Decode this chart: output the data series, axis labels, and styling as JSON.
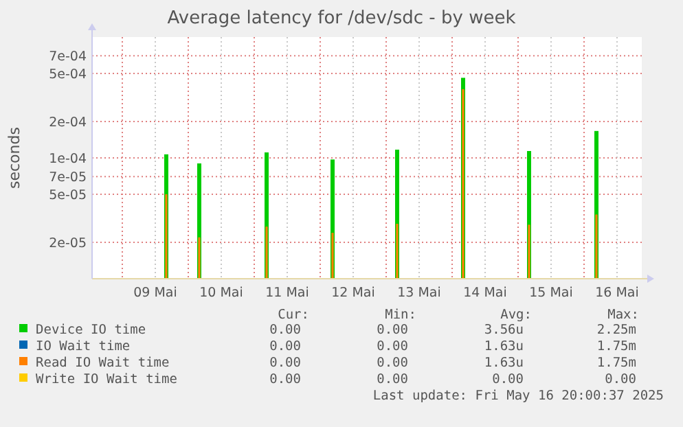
{
  "chart_data": {
    "type": "bar",
    "title": "Average latency for /dev/sdc - by week",
    "ylabel": "seconds",
    "x": [
      "2025-05-09T16:00",
      "2025-05-10T04:00",
      "2025-05-11T04:30",
      "2025-05-12T04:30",
      "2025-05-13T04:00",
      "2025-05-14T04:00",
      "2025-05-15T04:00",
      "2025-05-16T04:30"
    ],
    "series": [
      {
        "name": "Device IO time",
        "color": "#00cc00",
        "values": [
          0.000107,
          9e-05,
          0.000111,
          9.7e-05,
          0.000117,
          0.00046,
          0.000114,
          0.000167
        ]
      },
      {
        "name": "IO Wait time",
        "color": "#0066b3",
        "values": [
          null,
          null,
          null,
          null,
          null,
          null,
          null,
          null
        ]
      },
      {
        "name": "Read IO Wait time",
        "color": "#ff8000",
        "values": [
          5e-05,
          2.2e-05,
          2.7e-05,
          2.4e-05,
          2.85e-05,
          0.00037,
          2.8e-05,
          3.4e-05
        ]
      },
      {
        "name": "Write IO Wait time",
        "color": "#ffcc00",
        "values": [
          null,
          null,
          null,
          null,
          null,
          null,
          null,
          null
        ]
      }
    ],
    "log": "y",
    "ylim": [
      1e-05,
      0.001
    ],
    "yticks": [
      {
        "value": 2e-05,
        "label": "2e-05"
      },
      {
        "value": 5e-05,
        "label": "5e-05"
      },
      {
        "value": 7e-05,
        "label": "7e-05"
      },
      {
        "value": 0.0001,
        "label": "1e-04"
      },
      {
        "value": 0.0002,
        "label": "2e-04"
      },
      {
        "value": 0.0005,
        "label": "5e-04"
      },
      {
        "value": 0.0007,
        "label": "7e-04"
      }
    ],
    "xlim": [
      "2025-05-08T13:00",
      "2025-05-16T21:00"
    ],
    "xticks": [
      {
        "value": "2025-05-09T00:00",
        "label": null
      },
      {
        "value": "2025-05-09T12:00",
        "label": "09 Mai"
      },
      {
        "value": "2025-05-10T00:00",
        "label": null
      },
      {
        "value": "2025-05-10T12:00",
        "label": "10 Mai"
      },
      {
        "value": "2025-05-11T00:00",
        "label": null
      },
      {
        "value": "2025-05-11T12:00",
        "label": "11 Mai"
      },
      {
        "value": "2025-05-12T00:00",
        "label": null
      },
      {
        "value": "2025-05-12T12:00",
        "label": "12 Mai"
      },
      {
        "value": "2025-05-13T00:00",
        "label": null
      },
      {
        "value": "2025-05-13T12:00",
        "label": "13 Mai"
      },
      {
        "value": "2025-05-14T00:00",
        "label": null
      },
      {
        "value": "2025-05-14T12:00",
        "label": "14 Mai"
      },
      {
        "value": "2025-05-15T00:00",
        "label": null
      },
      {
        "value": "2025-05-15T12:00",
        "label": "15 Mai"
      },
      {
        "value": "2025-05-16T00:00",
        "label": null
      },
      {
        "value": "2025-05-16T12:00",
        "label": "16 Mai"
      }
    ],
    "grid": true,
    "legend": "bottom",
    "annotations": [
      "Cur:",
      "Min:",
      "Avg:",
      "Max:",
      "0.00",
      "0.00",
      "3.56u",
      "2.25m",
      "0.00",
      "0.00",
      "1.63u",
      "1.75m",
      "0.00",
      "0.00",
      "1.63u",
      "1.75m",
      "0.00",
      "0.00",
      "0.00",
      "0.00",
      "Last update: Fri May 16 20:00:37 2025"
    ]
  }
}
